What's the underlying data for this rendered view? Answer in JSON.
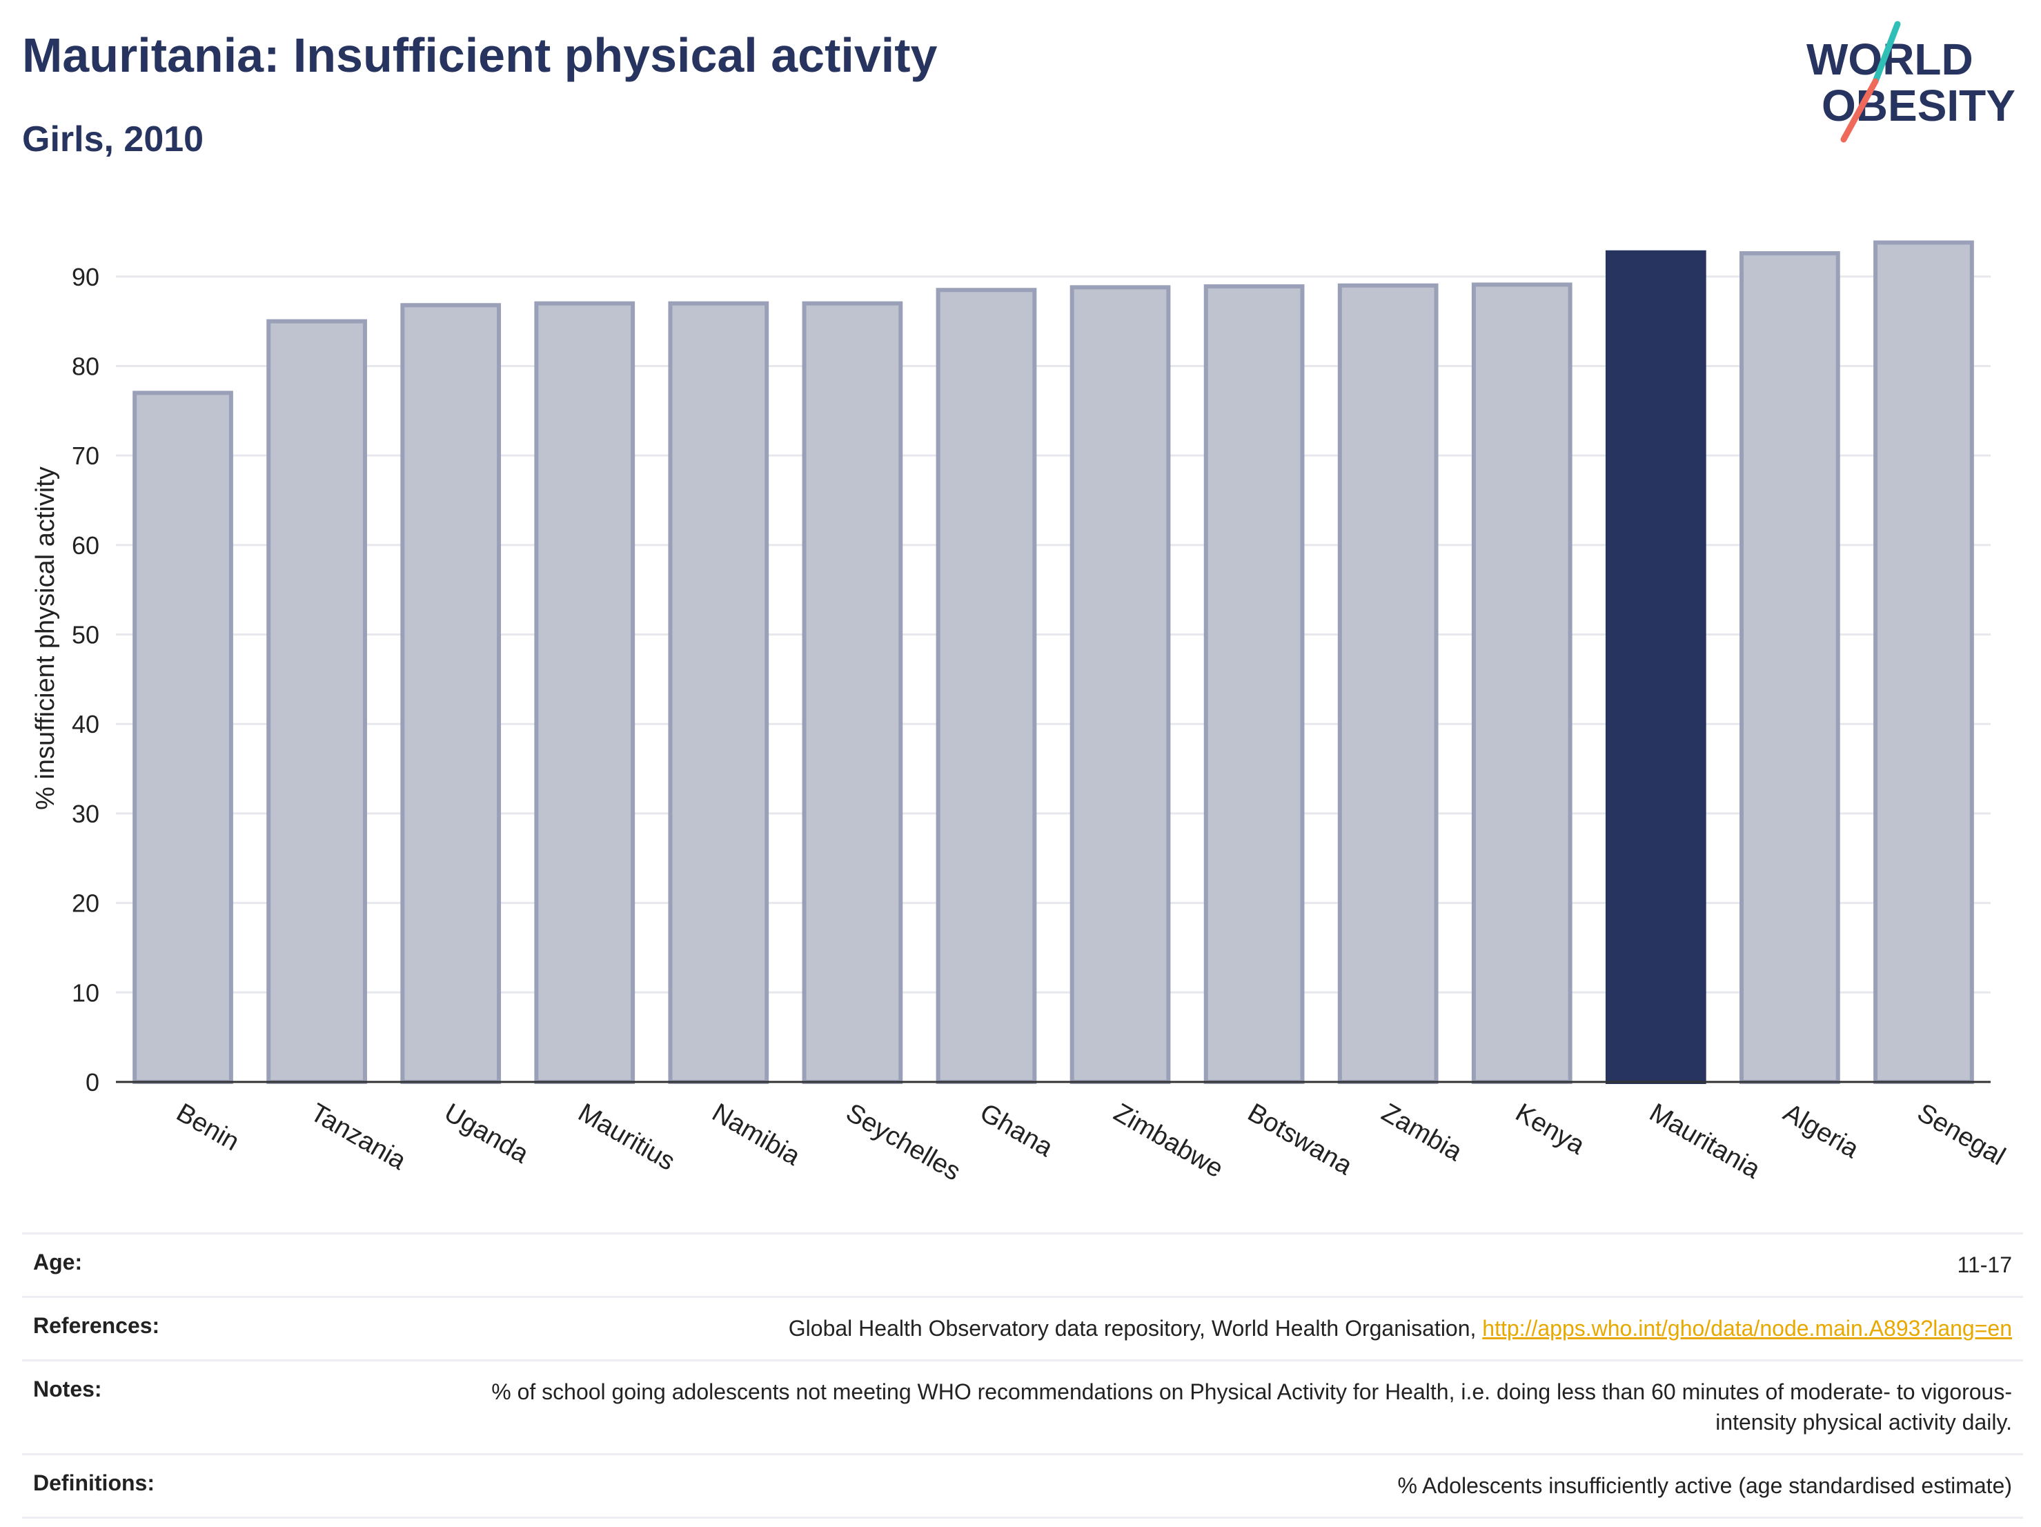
{
  "header": {
    "title": "Mauritania: Insufficient physical activity",
    "subtitle": "Girls, 2010"
  },
  "logo": {
    "line1": "WORLD",
    "line2": "OBESITY",
    "slash_colors": [
      "#2fbfb6",
      "#ef6a5a"
    ]
  },
  "chart_data": {
    "type": "bar",
    "categories": [
      "Benin",
      "Tanzania",
      "Uganda",
      "Mauritius",
      "Namibia",
      "Seychelles",
      "Ghana",
      "Zimbabwe",
      "Botswana",
      "Zambia",
      "Kenya",
      "Mauritania",
      "Algeria",
      "Senegal"
    ],
    "values": [
      77,
      85,
      86.8,
      87,
      87,
      87,
      88.5,
      88.8,
      88.9,
      89,
      89.1,
      92.7,
      92.6,
      93.8
    ],
    "highlight": "Mauritania",
    "ylabel": "% insufficient physical activity",
    "xlabel": "",
    "ylim": [
      0,
      97
    ],
    "yticks": [
      0,
      10,
      20,
      30,
      40,
      50,
      60,
      70,
      80,
      90
    ],
    "grid": true,
    "colors": {
      "bar": "#bfc3cf",
      "bar_edge": "#9aa0b8",
      "highlight": "#283460",
      "axis": "#333333",
      "grid": "#e6e8ee"
    }
  },
  "meta": {
    "age_label": "Age:",
    "age_value": "11-17",
    "references_label": "References:",
    "references_value": "Global Health Observatory data repository, World Health Organisation, ",
    "references_link": "http://apps.who.int/gho/data/node.main.A893?lang=en",
    "notes_label": "Notes:",
    "notes_value": "% of school going adolescents not meeting WHO recommendations on Physical Activity for Health, i.e. doing less than 60 minutes of moderate- to vigorous-intensity physical activity daily.",
    "definitions_label": "Definitions:",
    "definitions_value": "% Adolescents insufficiently active (age standardised estimate)"
  }
}
